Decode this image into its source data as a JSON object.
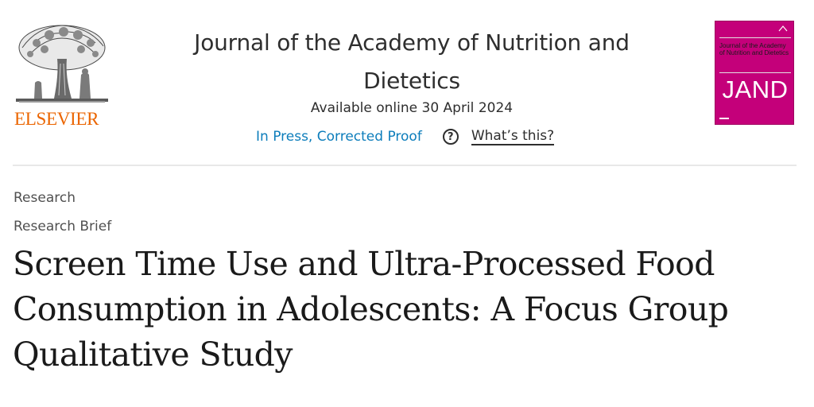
{
  "publisher": {
    "name": "ELSEVIER",
    "logo_icon": "elsevier-tree-icon",
    "brand_color": "#eb6500"
  },
  "header": {
    "journal_title": "Journal of the Academy of Nutrition and Dietetics",
    "available_online": "Available online 30 April 2024",
    "status_link": "In Press, Corrected Proof",
    "help_icon_glyph": "?",
    "help_link": "What’s this?",
    "link_color": "#0c7dbb"
  },
  "cover": {
    "title": "Journal of the Academy of Nutrition and Dietetics",
    "abbreviation": "JAND",
    "color": "#c4007a"
  },
  "article": {
    "category": "Research",
    "subcategory": "Research Brief",
    "title": "Screen Time Use and Ultra-Processed Food Consumption in Adolescents: A Focus Group Qualitative Study"
  }
}
